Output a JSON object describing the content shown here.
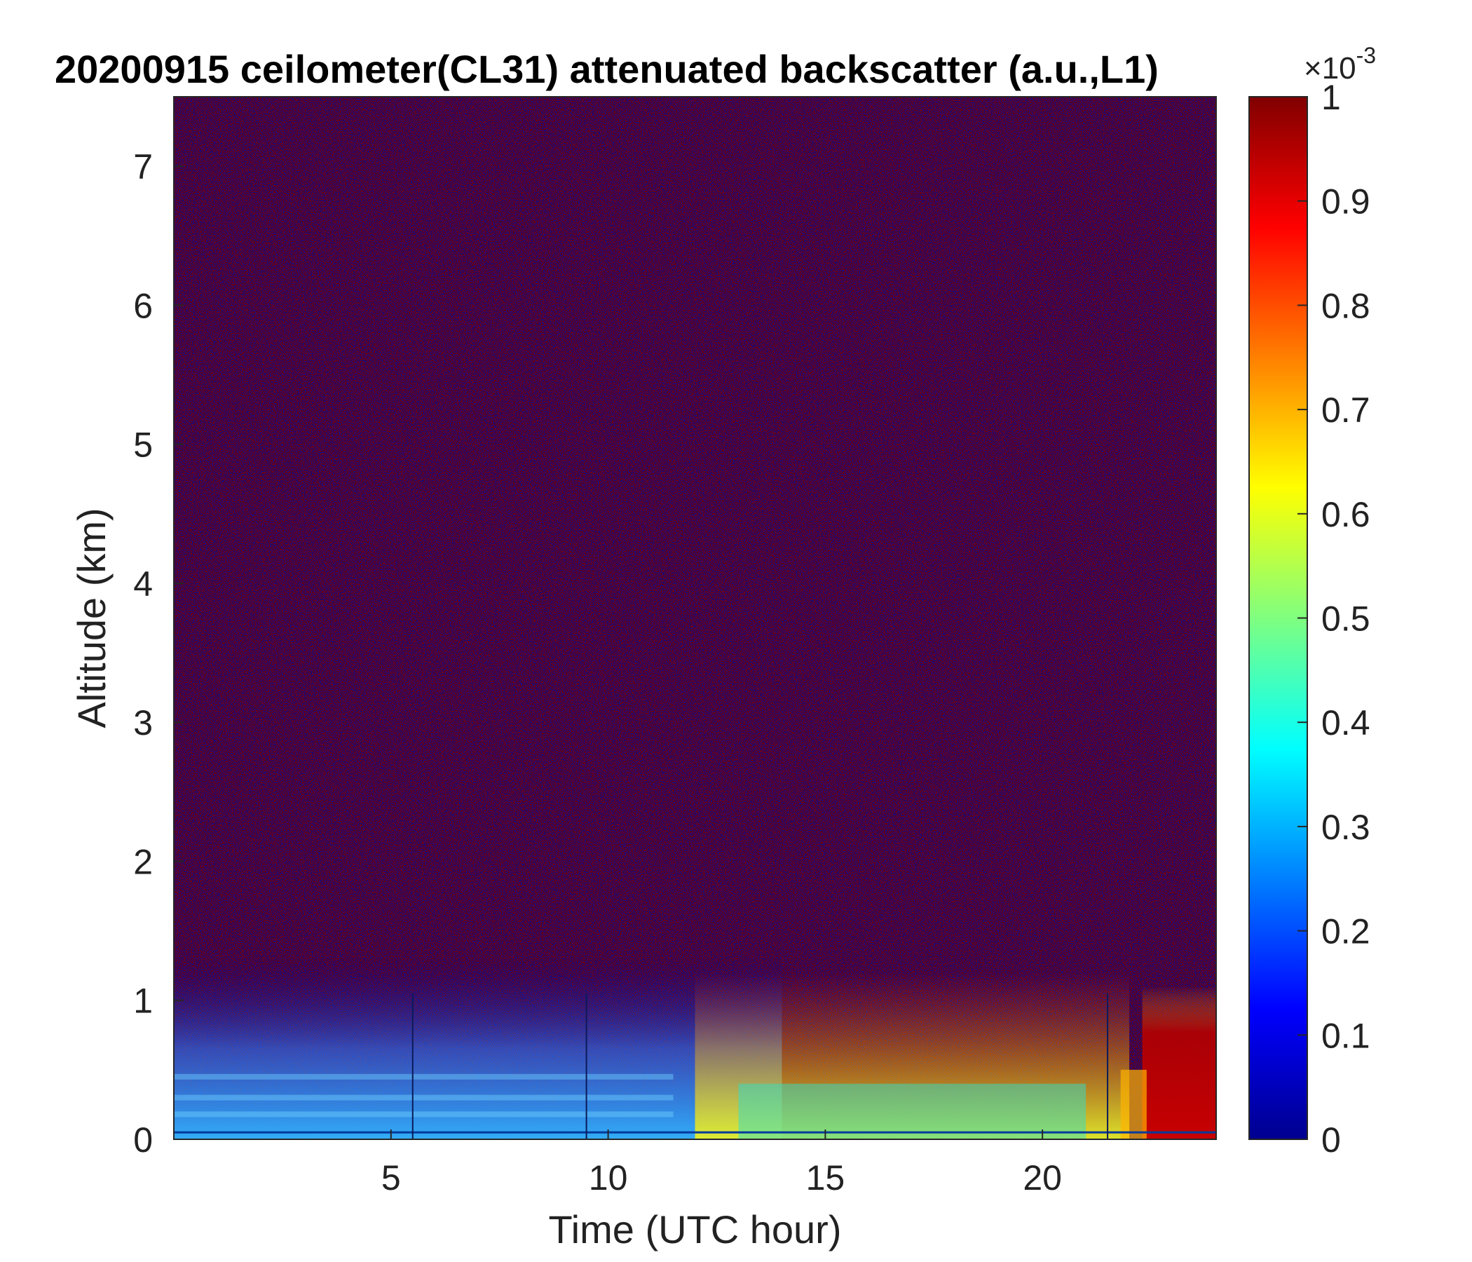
{
  "chart_data": {
    "type": "heatmap",
    "title": "20200915 ceilometer(CL31) attenuated backscatter (a.u.,L1)",
    "xlabel": "Time (UTC hour)",
    "ylabel": "Altitude (km)",
    "xlim": [
      0,
      24
    ],
    "ylim": [
      0,
      7.5
    ],
    "x_ticks": [
      5,
      10,
      15,
      20
    ],
    "y_ticks": [
      0,
      1,
      2,
      3,
      4,
      5,
      6,
      7
    ],
    "x_tick_labels": [
      "5",
      "10",
      "15",
      "20"
    ],
    "y_tick_labels": [
      "0",
      "1",
      "2",
      "3",
      "4",
      "5",
      "6",
      "7"
    ],
    "colorbar": {
      "label": "",
      "colormap": "jet",
      "range": [
        0,
        0.001
      ],
      "multiplier": "×10",
      "exponent": "-3",
      "ticks": [
        0,
        0.1,
        0.2,
        0.3,
        0.4,
        0.5,
        0.6,
        0.7,
        0.8,
        0.9,
        1
      ],
      "tick_labels": [
        "0",
        "0.1",
        "0.2",
        "0.3",
        "0.4",
        "0.5",
        "0.6",
        "0.7",
        "0.8",
        "0.9",
        "1"
      ]
    },
    "features": [
      {
        "description": "aerosol boundary layer, moderate backscatter",
        "time_range_h": [
          0,
          12
        ],
        "altitude_range_km": [
          0,
          0.6
        ],
        "approx_value_e-3": 0.35
      },
      {
        "description": "growing afternoon boundary layer",
        "time_range_h": [
          12,
          22
        ],
        "altitude_range_km": [
          0,
          1.2
        ],
        "approx_value_e-3": 0.55
      },
      {
        "description": "high backscatter layer near surface",
        "time_range_h": [
          22.3,
          24
        ],
        "altitude_range_km": [
          0,
          0.85
        ],
        "approx_value_e-3": 0.95
      },
      {
        "description": "instrument artifact lines",
        "times_h": [
          5.5,
          9.5,
          21.5
        ]
      }
    ]
  }
}
